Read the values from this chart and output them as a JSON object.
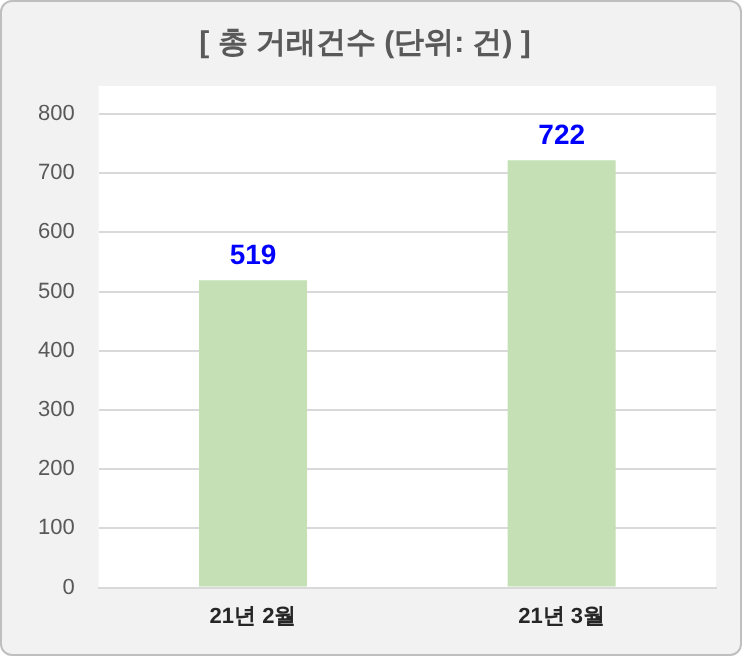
{
  "chart_data": {
    "type": "bar",
    "title": "[ 총 거래건수 (단위: 건) ]",
    "categories": [
      "21년 2월",
      "21년 3월"
    ],
    "values": [
      519,
      722
    ],
    "color": "#c5e0b4",
    "ylim": [
      0,
      800
    ],
    "yticks": [
      0,
      100,
      200,
      300,
      400,
      500,
      600,
      700,
      800
    ],
    "grid": "y",
    "data_labels": true,
    "legend": false
  }
}
